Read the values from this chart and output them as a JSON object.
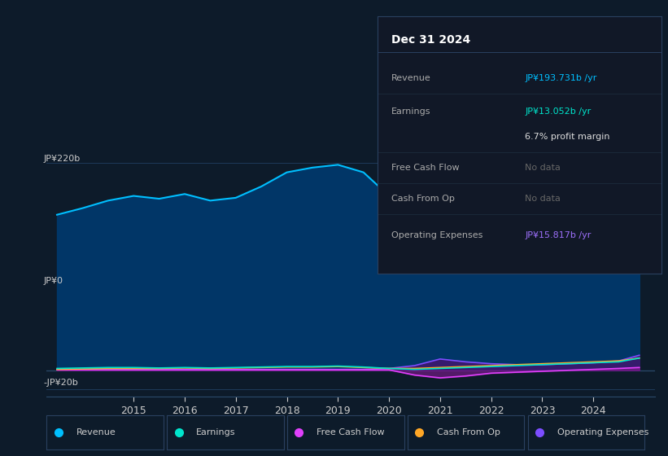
{
  "background_color": "#0d1b2a",
  "plot_bg_color": "#0d1b2a",
  "grid_color": "#1e3a5a",
  "text_color": "#cccccc",
  "title_color": "#ffffff",
  "ylabel_top": "JP¥220b",
  "ylabel_zero": "JP¥0",
  "ylabel_neg": "-JP¥20b",
  "years_x": [
    2013.5,
    2014,
    2014.5,
    2015,
    2015.5,
    2016,
    2016.5,
    2017,
    2017.5,
    2018,
    2018.5,
    2019,
    2019.5,
    2020,
    2020.5,
    2021,
    2021.5,
    2022,
    2022.5,
    2023,
    2023.5,
    2024,
    2024.5,
    2024.9
  ],
  "revenue": [
    165,
    172,
    180,
    185,
    182,
    187,
    180,
    183,
    195,
    210,
    215,
    218,
    210,
    185,
    150,
    125,
    145,
    180,
    205,
    215,
    195,
    175,
    185,
    193
  ],
  "earnings": [
    2,
    2.5,
    3,
    3,
    2.5,
    3,
    2.5,
    3,
    3.5,
    4,
    4,
    4.5,
    3.5,
    2,
    1,
    2,
    3,
    4,
    5,
    6,
    7,
    8,
    9,
    13
  ],
  "free_cash_flow": [
    0.5,
    0.5,
    0.5,
    0.5,
    0.5,
    0.5,
    0.5,
    0.5,
    0.5,
    0.5,
    0.5,
    0.5,
    0.5,
    0.5,
    -5,
    -8,
    -6,
    -3,
    -2,
    -1,
    0,
    1,
    2,
    3
  ],
  "cash_from_op": [
    1,
    1.5,
    2,
    2,
    2,
    2.5,
    2,
    2.5,
    3,
    3.5,
    3.5,
    4,
    3,
    2,
    2,
    3,
    4,
    5,
    6,
    7,
    8,
    9,
    10,
    13
  ],
  "operating_expenses": [
    1,
    1,
    1,
    1,
    1,
    1,
    1,
    1,
    1,
    1,
    1,
    1,
    1,
    2,
    5,
    12,
    9,
    7,
    6,
    6,
    7,
    8,
    10,
    16
  ],
  "revenue_color": "#00bfff",
  "revenue_fill_color": "#003a6e",
  "earnings_color": "#00e5cc",
  "free_cash_flow_color": "#e040fb",
  "cash_from_op_color": "#ffa726",
  "operating_expenses_color": "#7c4dff",
  "operating_expenses_fill_color": "#3a1a6e",
  "legend_items": [
    "Revenue",
    "Earnings",
    "Free Cash Flow",
    "Cash From Op",
    "Operating Expenses"
  ],
  "legend_colors": [
    "#00bfff",
    "#00e5cc",
    "#e040fb",
    "#ffa726",
    "#7c4dff"
  ],
  "tooltip_title": "Dec 31 2024",
  "tooltip_rows": [
    {
      "label": "Revenue",
      "value": "JP¥193.731b /yr",
      "value_color": "#00bfff",
      "no_data": false
    },
    {
      "label": "Earnings",
      "value": "JP¥13.052b /yr",
      "value_color": "#00e5cc",
      "no_data": false
    },
    {
      "label": "",
      "value": "6.7% profit margin",
      "value_color": "#dddddd",
      "no_data": false
    },
    {
      "label": "Free Cash Flow",
      "value": "No data",
      "value_color": "#666666",
      "no_data": true
    },
    {
      "label": "Cash From Op",
      "value": "No data",
      "value_color": "#666666",
      "no_data": true
    },
    {
      "label": "Operating Expenses",
      "value": "JP¥15.817b /yr",
      "value_color": "#9c6ffa",
      "no_data": false
    }
  ],
  "xtick_labels": [
    "2015",
    "2016",
    "2017",
    "2018",
    "2019",
    "2020",
    "2021",
    "2022",
    "2023",
    "2024"
  ],
  "xtick_positions": [
    2015,
    2016,
    2017,
    2018,
    2019,
    2020,
    2021,
    2022,
    2023,
    2024
  ]
}
